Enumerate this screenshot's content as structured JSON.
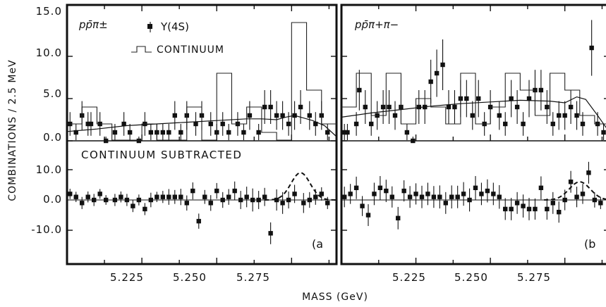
{
  "figure": {
    "ylabel": "COMBINATIONS / 2.5 MeV",
    "xlabel": "MASS (GeV)",
    "y_ticks_upper": [
      "15.0",
      "10.0",
      "5.0",
      "0.0"
    ],
    "y_ticks_lower": [
      "10.0",
      "0.0",
      "-10.0"
    ],
    "x_ticks": [
      "5.225",
      "5.250",
      "5.275"
    ],
    "legend_points": "Υ(4S)",
    "legend_hist": "CONTINUUM",
    "sub_label": "CONTINUUM SUBTRACTED"
  },
  "panels": [
    {
      "id": "a",
      "label": "(a",
      "channel": "pp̄π±"
    },
    {
      "id": "b",
      "label": "(b",
      "channel": "pp̄π+π−"
    }
  ],
  "chart_data": [
    {
      "type": "scatter",
      "panel": "a",
      "subplot": "upper",
      "xlim": [
        5.2,
        5.29
      ],
      "ylim": [
        0,
        15
      ],
      "x": [
        5.201,
        5.203,
        5.205,
        5.207,
        5.208,
        5.211,
        5.213,
        5.216,
        5.219,
        5.221,
        5.224,
        5.226,
        5.228,
        5.23,
        5.232,
        5.234,
        5.236,
        5.238,
        5.24,
        5.243,
        5.245,
        5.248,
        5.25,
        5.252,
        5.254,
        5.257,
        5.259,
        5.261,
        5.264,
        5.266,
        5.268,
        5.27,
        5.272,
        5.274,
        5.276,
        5.278,
        5.281,
        5.283,
        5.285,
        5.287
      ],
      "y": [
        2,
        1,
        3,
        2,
        2,
        2,
        0,
        1,
        2,
        1,
        0,
        2,
        1,
        1,
        1,
        1,
        3,
        1,
        3,
        2,
        3,
        2,
        1,
        2,
        1,
        2,
        1,
        3,
        1,
        4,
        4,
        3,
        3,
        2,
        3,
        4,
        3,
        2,
        3,
        1
      ],
      "err": [
        1.4,
        1,
        1.7,
        1.4,
        1.4,
        1.4,
        0.5,
        1,
        1.4,
        1,
        0.5,
        1.4,
        1,
        1,
        1,
        1,
        1.7,
        1,
        1.7,
        1.4,
        1.7,
        1.4,
        1,
        1.4,
        1,
        1.4,
        1,
        1.7,
        1,
        2,
        2,
        1.7,
        1.7,
        1.4,
        1.7,
        2,
        1.7,
        1.4,
        1.7,
        1
      ],
      "series": [
        {
          "name": "Υ(4S)",
          "style": "points"
        },
        {
          "name": "CONTINUUM",
          "style": "histogram",
          "bin_edges": [
            5.2,
            5.205,
            5.21,
            5.215,
            5.22,
            5.225,
            5.23,
            5.235,
            5.24,
            5.245,
            5.25,
            5.255,
            5.26,
            5.265,
            5.27,
            5.275,
            5.28,
            5.285,
            5.29
          ],
          "values": [
            2,
            4,
            2,
            0,
            0,
            2,
            0,
            0,
            4,
            0,
            8,
            2,
            4,
            1,
            0,
            14,
            6,
            2
          ]
        },
        {
          "name": "fit",
          "style": "curve",
          "x": [
            5.2,
            5.21,
            5.22,
            5.23,
            5.24,
            5.25,
            5.26,
            5.265,
            5.27,
            5.273,
            5.276,
            5.279,
            5.282,
            5.286,
            5.29
          ],
          "y": [
            1.1,
            1.4,
            1.8,
            2.0,
            2.2,
            2.4,
            2.6,
            2.6,
            2.5,
            2.8,
            3.0,
            2.7,
            2.4,
            1.8,
            0.5
          ]
        }
      ]
    },
    {
      "type": "scatter",
      "panel": "a",
      "subplot": "lower",
      "xlim": [
        5.2,
        5.29
      ],
      "ylim": [
        -15,
        15
      ],
      "x": [
        5.201,
        5.203,
        5.205,
        5.207,
        5.209,
        5.211,
        5.213,
        5.216,
        5.218,
        5.22,
        5.222,
        5.224,
        5.226,
        5.228,
        5.23,
        5.232,
        5.234,
        5.236,
        5.238,
        5.24,
        5.242,
        5.244,
        5.246,
        5.248,
        5.25,
        5.252,
        5.254,
        5.256,
        5.258,
        5.26,
        5.262,
        5.264,
        5.266,
        5.268,
        5.27,
        5.272,
        5.274,
        5.276,
        5.279,
        5.281,
        5.283,
        5.285,
        5.287
      ],
      "y": [
        2,
        1,
        -1,
        1,
        0,
        2,
        0,
        0,
        1,
        0,
        -2,
        0,
        -3,
        0,
        1,
        1,
        1,
        1,
        1,
        -1,
        3,
        -7,
        1,
        -1,
        3,
        0,
        1,
        3,
        0,
        1,
        0,
        0,
        1,
        -11,
        0,
        -1,
        0,
        2,
        -1,
        0,
        1,
        2,
        -1
      ],
      "err": [
        1.7,
        1.7,
        2,
        1.8,
        2,
        1.6,
        1.6,
        2,
        1.8,
        2,
        2,
        1.8,
        2,
        2.4,
        1.7,
        2,
        2.6,
        2.3,
        2.7,
        2.5,
        2.8,
        2.5,
        2.3,
        2.6,
        2.6,
        2.6,
        2.6,
        3.1,
        3,
        3.4,
        3.8,
        3,
        3,
        3.6,
        3.5,
        3.6,
        2.8,
        3,
        3.3,
        2.6,
        2.6,
        2.2,
        2
      ],
      "series": [
        {
          "name": "Υ(4S) − CONTINUUM",
          "style": "points"
        },
        {
          "name": "expected signal",
          "style": "dashed",
          "peak_x": 5.278,
          "peak_y": 9,
          "sigma": 0.0032
        }
      ]
    },
    {
      "type": "scatter",
      "panel": "b",
      "subplot": "upper",
      "xlim": [
        5.2,
        5.29
      ],
      "ylim": [
        0,
        15
      ],
      "x": [
        5.201,
        5.202,
        5.205,
        5.206,
        5.208,
        5.21,
        5.212,
        5.214,
        5.216,
        5.218,
        5.22,
        5.222,
        5.224,
        5.226,
        5.228,
        5.23,
        5.232,
        5.234,
        5.236,
        5.238,
        5.24,
        5.242,
        5.244,
        5.246,
        5.248,
        5.25,
        5.253,
        5.255,
        5.257,
        5.259,
        5.261,
        5.263,
        5.265,
        5.267,
        5.269,
        5.271,
        5.273,
        5.275,
        5.277,
        5.279,
        5.281,
        5.284,
        5.286,
        5.288
      ],
      "y": [
        1,
        1,
        2,
        6,
        4,
        2,
        3,
        4,
        4,
        3,
        4,
        1,
        0,
        4,
        4,
        7,
        8,
        9,
        4,
        4,
        5,
        5,
        3,
        5,
        2,
        4,
        3,
        2,
        5,
        4,
        2,
        5,
        6,
        6,
        4,
        2,
        3,
        3,
        4,
        3,
        2,
        11,
        2,
        1
      ],
      "err": [
        1,
        1,
        1.4,
        2.4,
        2,
        1.4,
        1.7,
        2,
        2,
        1.7,
        2,
        1,
        0.5,
        2,
        2,
        2.6,
        2.8,
        3,
        2,
        2,
        2.2,
        2.2,
        1.7,
        2.2,
        1.4,
        2,
        1.7,
        1.4,
        2.2,
        2,
        1.4,
        2.2,
        2.4,
        2.4,
        2,
        1.4,
        1.7,
        1.7,
        2,
        1.7,
        1.4,
        3.3,
        1.4,
        1
      ],
      "series": [
        {
          "name": "Υ(4S)",
          "style": "points"
        },
        {
          "name": "CONTINUUM",
          "style": "histogram",
          "bin_edges": [
            5.2,
            5.205,
            5.21,
            5.215,
            5.22,
            5.225,
            5.23,
            5.235,
            5.24,
            5.245,
            5.25,
            5.255,
            5.26,
            5.265,
            5.27,
            5.275,
            5.28,
            5.285,
            5.29
          ],
          "values": [
            4,
            8,
            3,
            8,
            2,
            5,
            4,
            2,
            8,
            2,
            4,
            8,
            6,
            3,
            8,
            6,
            3,
            2
          ]
        },
        {
          "name": "fit",
          "style": "curve",
          "x": [
            5.2,
            5.21,
            5.22,
            5.23,
            5.24,
            5.25,
            5.26,
            5.27,
            5.275,
            5.279,
            5.282,
            5.286,
            5.29
          ],
          "y": [
            2.8,
            3.3,
            3.7,
            4.1,
            4.4,
            4.6,
            4.8,
            4.7,
            4.5,
            5.2,
            4.9,
            3.0,
            1.0
          ]
        }
      ]
    },
    {
      "type": "scatter",
      "panel": "b",
      "subplot": "lower",
      "xlim": [
        5.2,
        5.29
      ],
      "ylim": [
        -15,
        15
      ],
      "x": [
        5.201,
        5.203,
        5.205,
        5.207,
        5.209,
        5.211,
        5.213,
        5.215,
        5.217,
        5.219,
        5.221,
        5.223,
        5.225,
        5.227,
        5.229,
        5.231,
        5.233,
        5.235,
        5.237,
        5.239,
        5.241,
        5.243,
        5.245,
        5.247,
        5.249,
        5.251,
        5.253,
        5.255,
        5.257,
        5.259,
        5.261,
        5.263,
        5.265,
        5.267,
        5.269,
        5.271,
        5.273,
        5.275,
        5.277,
        5.279,
        5.281,
        5.283,
        5.285,
        5.287
      ],
      "y": [
        1,
        2,
        4,
        -2,
        -5,
        2,
        4,
        3,
        1,
        -6,
        3,
        1,
        2,
        1,
        2,
        1,
        1,
        -1,
        1,
        1,
        2,
        0,
        4,
        2,
        3,
        2,
        1,
        -3,
        -3,
        -1,
        -2,
        -3,
        -3,
        4,
        -3,
        -1,
        -4,
        0,
        6,
        1,
        2,
        9,
        0,
        -1
      ],
      "err": [
        3.4,
        3.3,
        3.7,
        3.3,
        3.6,
        3.7,
        3.9,
        3.7,
        3.5,
        3.7,
        3.5,
        3.6,
        3.5,
        3.7,
        3.7,
        3.6,
        3.8,
        3.6,
        3.8,
        3.7,
        3.9,
        3.8,
        3.9,
        3.7,
        3.8,
        3.7,
        3.9,
        3.6,
        3.7,
        3.6,
        3.8,
        3.7,
        3.5,
        3.8,
        3.5,
        3.6,
        3.5,
        3.4,
        3.6,
        3.4,
        3.3,
        3.6,
        2.5,
        2
      ],
      "series": [
        {
          "name": "Υ(4S) − CONTINUUM",
          "style": "points"
        },
        {
          "name": "expected signal",
          "style": "dashed",
          "peak_x": 5.28,
          "peak_y": 6,
          "sigma": 0.0035
        }
      ]
    }
  ]
}
